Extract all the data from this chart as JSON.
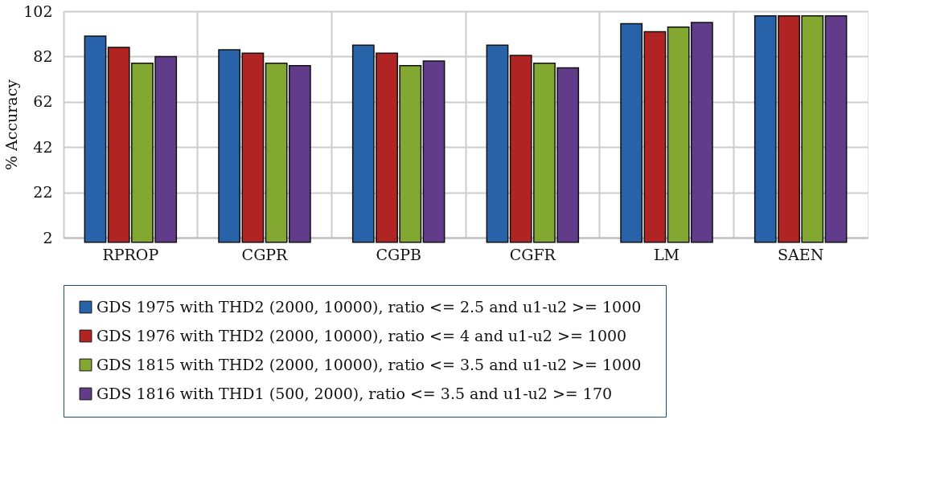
{
  "chart_data": {
    "type": "bar",
    "ylabel": "% Accuracy",
    "categories": [
      "RPROP",
      "CGPR",
      "CGPB",
      "CGFR",
      "LM",
      "SAEN"
    ],
    "series": [
      {
        "name": "GDS 1975  with THD2 (2000, 10000), ratio <= 2.5 and u1-u2 >= 1000",
        "color": "#2862a8",
        "values": [
          91,
          85,
          87,
          87,
          96.5,
          100
        ]
      },
      {
        "name": "GDS 1976 with  THD2 (2000, 10000), ratio <= 4 and u1-u2 >= 1000",
        "color": "#b02424",
        "values": [
          86,
          83.5,
          83.5,
          82.5,
          93,
          100
        ]
      },
      {
        "name": " GDS 1815  with  THD2 (2000, 10000), ratio <= 3.5 and u1-u2 >= 1000",
        "color": "#82a832",
        "values": [
          79,
          79,
          78,
          79,
          95,
          100
        ]
      },
      {
        "name": "GDS 1816  with  THD1 (500, 2000), ratio <= 3.5 and u1-u2 >= 170",
        "color": "#603c8a",
        "values": [
          82,
          78,
          80,
          77,
          97,
          100
        ]
      }
    ],
    "ylim": [
      2,
      102
    ],
    "yticks": [
      2,
      22,
      42,
      62,
      82,
      102
    ],
    "grid": true,
    "legend": "bottom"
  }
}
